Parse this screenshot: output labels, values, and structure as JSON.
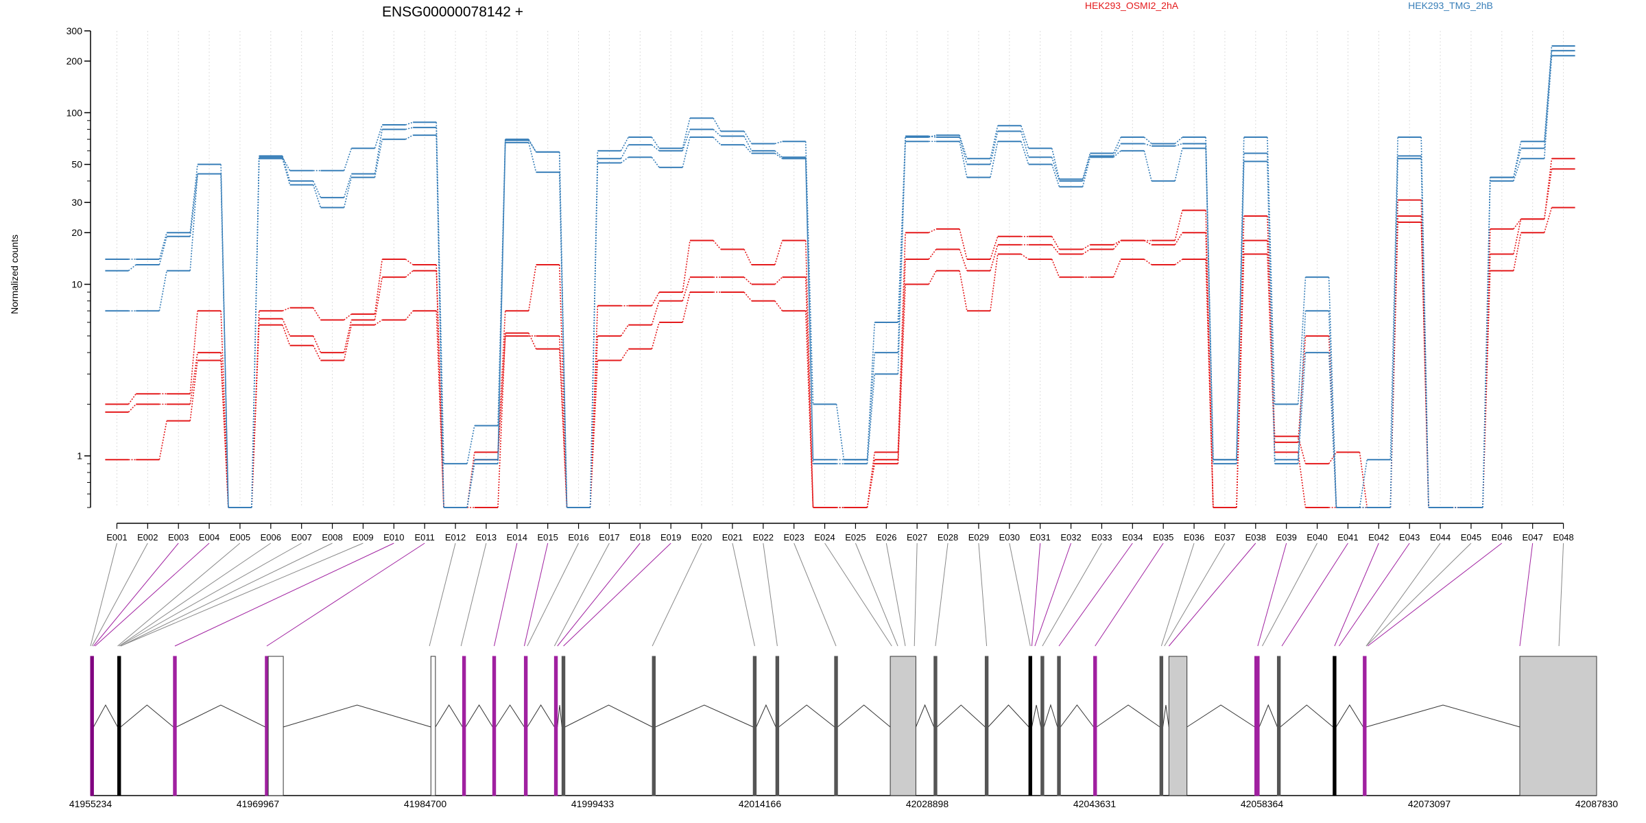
{
  "chart_data": {
    "type": "line",
    "title": "ENSG00000078142 +",
    "xlabel": "",
    "ylabel": "Normalized counts",
    "y_scale": "log",
    "ylim": [
      0.5,
      300
    ],
    "y_ticks": [
      {
        "value": 1,
        "label": "1"
      },
      {
        "value": 10,
        "label": "10"
      },
      {
        "value": 20,
        "label": "20"
      },
      {
        "value": 30,
        "label": "30"
      },
      {
        "value": 50,
        "label": "50"
      },
      {
        "value": 100,
        "label": "100"
      },
      {
        "value": 200,
        "label": "200"
      },
      {
        "value": 300,
        "label": "300"
      }
    ],
    "grid": "vertical dotted at each exon",
    "legend_placement": "top-right",
    "categories": [
      "E001",
      "E002",
      "E003",
      "E004",
      "E005",
      "E006",
      "E007",
      "E008",
      "E009",
      "E010",
      "E011",
      "E012",
      "E013",
      "E014",
      "E015",
      "E016",
      "E017",
      "E018",
      "E019",
      "E020",
      "E021",
      "E022",
      "E023",
      "E024",
      "E025",
      "E026",
      "E027",
      "E028",
      "E029",
      "E030",
      "E031",
      "E032",
      "E033",
      "E034",
      "E035",
      "E036",
      "E037",
      "E038",
      "E039",
      "E040",
      "E041",
      "E042",
      "E043",
      "E044",
      "E045",
      "E046",
      "E047",
      "E048"
    ],
    "series": [
      {
        "name": "HEK293_OSMI2_2hA",
        "color": "#e41a1c",
        "values": [
          2,
          2.3,
          2.3,
          7,
          0.5,
          7,
          7.3,
          6.2,
          6.7,
          14,
          13,
          0.5,
          1.05,
          7,
          13,
          0.5,
          7.5,
          7.5,
          9,
          18,
          16,
          13,
          18,
          0.5,
          0.5,
          1.05,
          20,
          21,
          14,
          19,
          19,
          16,
          17,
          18,
          18,
          27,
          0.5,
          25,
          1.3,
          0.9,
          1.05,
          0.5,
          31,
          0.5,
          0.5,
          21,
          24,
          54
        ]
      },
      {
        "name": "HEK293_OSMI2_2hA",
        "color": "#e41a1c",
        "values": [
          1.8,
          2,
          2,
          4,
          0.5,
          6.3,
          5,
          4,
          6.2,
          11,
          12,
          0.5,
          0.95,
          5,
          5,
          0.5,
          5,
          5.8,
          8,
          11,
          11,
          10,
          11,
          0.5,
          0.5,
          0.95,
          14,
          16,
          12,
          17,
          17,
          15,
          16,
          18,
          17,
          20,
          0.5,
          18,
          1.2,
          5,
          0.5,
          0.5,
          25,
          0.5,
          0.5,
          15,
          24,
          47
        ]
      },
      {
        "name": "HEK293_OSMI2_2hA",
        "color": "#e41a1c",
        "values": [
          0.95,
          0.95,
          1.6,
          3.6,
          0.5,
          5.8,
          4.4,
          3.6,
          5.8,
          6.2,
          7,
          0.5,
          0.5,
          5.2,
          4.2,
          0.5,
          3.6,
          4.2,
          6,
          9,
          9,
          8,
          7,
          0.5,
          0.5,
          0.9,
          10,
          12,
          7,
          15,
          14,
          11,
          11,
          14,
          13,
          14,
          0.5,
          15,
          1.05,
          0.5,
          0.5,
          0.5,
          23,
          0.5,
          0.5,
          12,
          20,
          28
        ]
      },
      {
        "name": "HEK293_TMG_2hB",
        "color": "#377eb8",
        "values": [
          14,
          14,
          20,
          50,
          0.5,
          55,
          46,
          46,
          62,
          85,
          88,
          0.9,
          1.5,
          70,
          59,
          0.5,
          60,
          72,
          62,
          93,
          78,
          66,
          68,
          2,
          0.95,
          6,
          72,
          74,
          54,
          84,
          62,
          41,
          58,
          72,
          66,
          72,
          0.95,
          72,
          2,
          11,
          0.5,
          0.95,
          72,
          0.5,
          0.5,
          42,
          68,
          245
        ]
      },
      {
        "name": "HEK293_TMG_2hB",
        "color": "#377eb8",
        "values": [
          12,
          13,
          19,
          44,
          0.5,
          56,
          40,
          32,
          44,
          80,
          82,
          0.5,
          0.95,
          69,
          59,
          0.5,
          54,
          65,
          60,
          80,
          73,
          60,
          55,
          0.95,
          0.95,
          4,
          73,
          72,
          50,
          78,
          55,
          40,
          56,
          66,
          64,
          66,
          0.95,
          58,
          0.95,
          7,
          0.5,
          0.5,
          56,
          0.5,
          0.5,
          42,
          62,
          230
        ]
      },
      {
        "name": "HEK293_TMG_2hB",
        "color": "#377eb8",
        "values": [
          7,
          7,
          12,
          44,
          0.5,
          54,
          38,
          28,
          42,
          70,
          74,
          0.5,
          0.9,
          67,
          45,
          0.5,
          51,
          55,
          48,
          72,
          65,
          58,
          54,
          0.9,
          0.9,
          3,
          68,
          68,
          42,
          68,
          50,
          37,
          55,
          60,
          40,
          62,
          0.9,
          52,
          0.9,
          4,
          0.5,
          0.5,
          54,
          0.5,
          0.5,
          40,
          54,
          215
        ]
      }
    ],
    "gene_model": {
      "coordinate_ticks": [
        "41955234",
        "41969967",
        "41984700",
        "41999433",
        "42014166",
        "42028898",
        "42043631",
        "42058364",
        "42073097",
        "42087830"
      ]
    }
  },
  "legend": [
    {
      "label": "HEK293_OSMI2_2hA",
      "color": "#e41a1c"
    },
    {
      "label": "HEK293_TMG_2hB",
      "color": "#377eb8"
    }
  ]
}
